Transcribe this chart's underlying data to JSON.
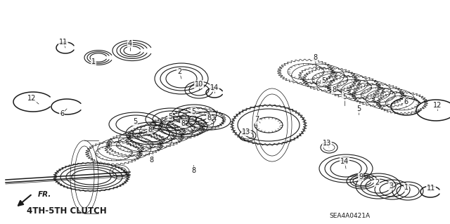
{
  "title": "4TH-5TH CLUTCH",
  "part_code": "SEA4A0421A",
  "background_color": "#ffffff",
  "diagram_color": "#1a1a1a",
  "fig_width": 6.4,
  "fig_height": 3.19,
  "dpi": 100,
  "fr_label": "FR."
}
